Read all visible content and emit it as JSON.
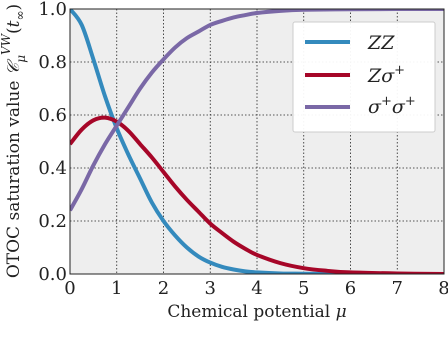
{
  "chart_data": {
    "type": "line",
    "xlabel": "Chemical potential μ",
    "ylabel": "OTOC saturation value 𝒞μ^{VW}(t∞)",
    "xlim": [
      0,
      8
    ],
    "ylim": [
      0,
      1
    ],
    "x_ticks": [
      "0",
      "1",
      "2",
      "3",
      "4",
      "5",
      "6",
      "7",
      "8"
    ],
    "y_ticks": [
      "0.0",
      "0.2",
      "0.4",
      "0.6",
      "0.8",
      "1.0"
    ],
    "grid": true,
    "legend_position": "top-right",
    "series": [
      {
        "name": "ZZ",
        "color": "#348abd",
        "x": [
          0,
          0.25,
          0.5,
          0.75,
          1.0,
          1.25,
          1.5,
          1.75,
          2.0,
          2.25,
          2.5,
          2.75,
          3.0,
          3.25,
          3.5,
          3.75,
          4.0,
          4.5,
          5.0,
          6.0,
          7.0,
          8.0
        ],
        "y": [
          1.0,
          0.94,
          0.81,
          0.67,
          0.55,
          0.45,
          0.36,
          0.27,
          0.2,
          0.145,
          0.1,
          0.066,
          0.043,
          0.027,
          0.017,
          0.01,
          0.006,
          0.002,
          0.001,
          0.0,
          0.0,
          0.0
        ]
      },
      {
        "name": "Zσ⁺",
        "color": "#a60628",
        "x": [
          0,
          0.25,
          0.5,
          0.75,
          1.0,
          1.25,
          1.5,
          1.75,
          2.0,
          2.25,
          2.5,
          2.75,
          3.0,
          3.25,
          3.5,
          3.75,
          4.0,
          4.5,
          5.0,
          5.5,
          6.0,
          7.0,
          8.0
        ],
        "y": [
          0.49,
          0.545,
          0.58,
          0.59,
          0.575,
          0.54,
          0.49,
          0.44,
          0.385,
          0.33,
          0.28,
          0.235,
          0.19,
          0.155,
          0.122,
          0.095,
          0.072,
          0.041,
          0.022,
          0.012,
          0.006,
          0.002,
          0.0
        ]
      },
      {
        "name": "σ⁺σ⁺",
        "color": "#7a68a6",
        "x": [
          0,
          0.25,
          0.5,
          0.75,
          1.0,
          1.25,
          1.5,
          1.75,
          2.0,
          2.25,
          2.5,
          2.75,
          3.0,
          3.25,
          3.5,
          3.75,
          4.0,
          4.5,
          5.0,
          6.0,
          7.0,
          8.0
        ],
        "y": [
          0.24,
          0.32,
          0.41,
          0.49,
          0.56,
          0.63,
          0.7,
          0.76,
          0.81,
          0.855,
          0.89,
          0.915,
          0.94,
          0.955,
          0.968,
          0.977,
          0.985,
          0.993,
          0.997,
          0.999,
          1.0,
          1.0
        ]
      }
    ]
  }
}
